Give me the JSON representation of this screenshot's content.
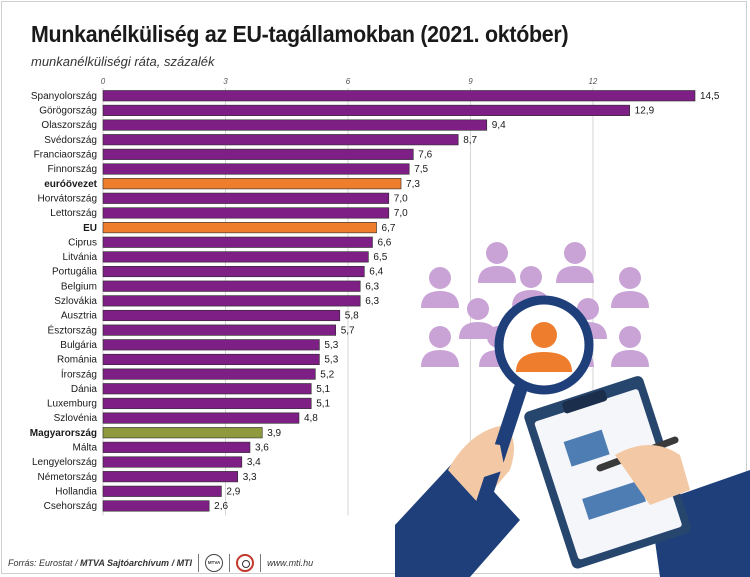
{
  "title": "Munkanélküliség az EU-tagállamokban (2021. október)",
  "subtitle": "munkanélküliségi ráta, százalék",
  "colors": {
    "bar_default": "#7d1f84",
    "bar_eurozone": "#ef7d2e",
    "bar_eu": "#ef7d2e",
    "bar_hungary": "#8f9a3e",
    "gridline": "#d6d6d6",
    "illustration_people": "#c9a3d6",
    "illustration_focus": "#ef7d2e",
    "illustration_sleeve": "#1f3f7a",
    "illustration_skin": "#f3c9a5"
  },
  "illustration": {
    "icon": "job-search-magnifier-illustration"
  },
  "chart_data": {
    "type": "bar",
    "orientation": "horizontal",
    "xlim": [
      0,
      14.5
    ],
    "xticks": [
      "0",
      "3",
      "6",
      "9",
      "12"
    ],
    "xtick_values": [
      0,
      3,
      6,
      9,
      12
    ],
    "grid": true,
    "categories": [
      "Spanyolország",
      "Görögország",
      "Olaszország",
      "Svédország",
      "Franciaország",
      "Finnország",
      "euróövezet",
      "Horvátország",
      "Lettország",
      "EU",
      "Ciprus",
      "Litvánia",
      "Portugália",
      "Belgium",
      "Szlovákia",
      "Ausztria",
      "Észtország",
      "Bulgária",
      "Románia",
      "Írország",
      "Dánia",
      "Luxemburg",
      "Szlovénia",
      "Magyarország",
      "Málta",
      "Lengyelország",
      "Németország",
      "Hollandia",
      "Csehország"
    ],
    "values": [
      14.5,
      12.9,
      9.4,
      8.7,
      7.6,
      7.5,
      7.3,
      7.0,
      7.0,
      6.7,
      6.6,
      6.5,
      6.4,
      6.3,
      6.3,
      5.8,
      5.7,
      5.3,
      5.3,
      5.2,
      5.1,
      5.1,
      4.8,
      3.9,
      3.6,
      3.4,
      3.3,
      2.9,
      2.6
    ],
    "value_labels": [
      "14,5",
      "12,9",
      "9,4",
      "8,7",
      "7,6",
      "7,5",
      "7,3",
      "7,0",
      "7,0",
      "6,7",
      "6,6",
      "6,5",
      "6,4",
      "6,3",
      "6,3",
      "5,8",
      "5,7",
      "5,3",
      "5,3",
      "5,2",
      "5,1",
      "5,1",
      "4,8",
      "3,9",
      "3,6",
      "3,4",
      "3,3",
      "2,9",
      "2,6"
    ],
    "highlight": {
      "euróövezet": "bar_eurozone",
      "EU": "bar_eu",
      "Magyarország": "bar_hungary"
    },
    "bold_categories": [
      "euróövezet",
      "EU",
      "Magyarország"
    ]
  },
  "footer": {
    "source": "Forrás: Eurostat /",
    "org": "MTVA Sajtóarchívum / MTI",
    "url": "www.mti.hu"
  }
}
